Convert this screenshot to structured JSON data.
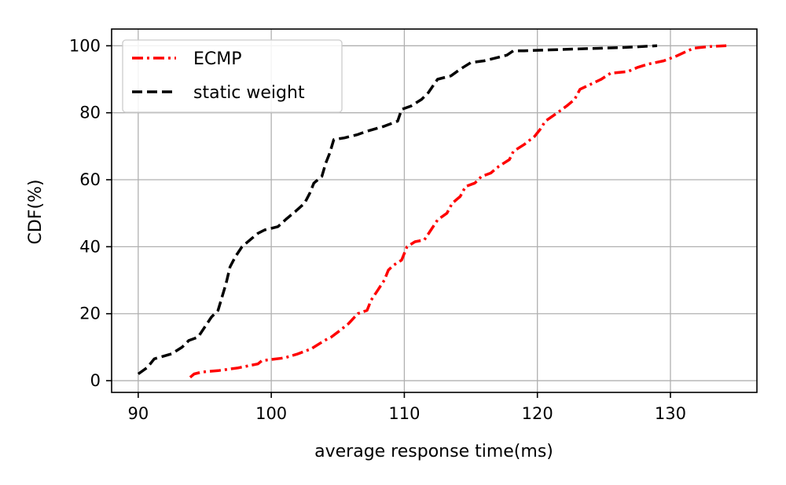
{
  "chart_data": {
    "type": "line",
    "xlabel": "average response time(ms)",
    "ylabel": "CDF(%)",
    "xlim": [
      88,
      136.5
    ],
    "ylim": [
      -3.5,
      105
    ],
    "xticks": [
      90,
      100,
      110,
      120,
      130
    ],
    "yticks": [
      0,
      20,
      40,
      60,
      80,
      100
    ],
    "grid": true,
    "legend_position": "top-left",
    "series": [
      {
        "name": "ECMP",
        "color": "#ff0000",
        "style": "dashdot",
        "points": [
          [
            93.9,
            1
          ],
          [
            94.2,
            2
          ],
          [
            94.8,
            2.6
          ],
          [
            96,
            3
          ],
          [
            97.5,
            3.8
          ],
          [
            99,
            5
          ],
          [
            99.3,
            6
          ],
          [
            101,
            6.8
          ],
          [
            102,
            8
          ],
          [
            103,
            9.5
          ],
          [
            104,
            12
          ],
          [
            104.5,
            13
          ],
          [
            105,
            14.5
          ],
          [
            105.8,
            17
          ],
          [
            106.5,
            20
          ],
          [
            107.2,
            21
          ],
          [
            107.5,
            24
          ],
          [
            108,
            27
          ],
          [
            108.5,
            30
          ],
          [
            108.8,
            33
          ],
          [
            109.2,
            34.5
          ],
          [
            109.8,
            36
          ],
          [
            110.2,
            40
          ],
          [
            110.8,
            41.5
          ],
          [
            111.5,
            42
          ],
          [
            112,
            45
          ],
          [
            112.5,
            48
          ],
          [
            113.2,
            50
          ],
          [
            113.6,
            53
          ],
          [
            114.2,
            55
          ],
          [
            114.6,
            58
          ],
          [
            115.3,
            59
          ],
          [
            115.8,
            61
          ],
          [
            116.5,
            62
          ],
          [
            117.1,
            64
          ],
          [
            117.9,
            66
          ],
          [
            118.2,
            68.5
          ],
          [
            119,
            70.5
          ],
          [
            119.8,
            73
          ],
          [
            120.2,
            75
          ],
          [
            120.6,
            77.5
          ],
          [
            121.5,
            80
          ],
          [
            122.2,
            82
          ],
          [
            122.8,
            84
          ],
          [
            123.2,
            87
          ],
          [
            124,
            88.5
          ],
          [
            124.8,
            90
          ],
          [
            125.5,
            91.8
          ],
          [
            126.8,
            92.3
          ],
          [
            127.5,
            93.5
          ],
          [
            128.3,
            94.5
          ],
          [
            129.5,
            95.5
          ],
          [
            130.5,
            97
          ],
          [
            131.3,
            98.5
          ],
          [
            131.8,
            99.3
          ],
          [
            133,
            99.8
          ],
          [
            134.2,
            100
          ]
        ]
      },
      {
        "name": "static weight",
        "color": "#000000",
        "style": "dashed",
        "points": [
          [
            90,
            2
          ],
          [
            90.7,
            4
          ],
          [
            91.2,
            6.5
          ],
          [
            92.5,
            8
          ],
          [
            93.3,
            10
          ],
          [
            93.8,
            12
          ],
          [
            94.5,
            13
          ],
          [
            95,
            16
          ],
          [
            95.5,
            19
          ],
          [
            96,
            21
          ],
          [
            96.3,
            25
          ],
          [
            96.6,
            29
          ],
          [
            96.9,
            34
          ],
          [
            97.3,
            37
          ],
          [
            97.8,
            40
          ],
          [
            98.4,
            42
          ],
          [
            99,
            44
          ],
          [
            99.5,
            45
          ],
          [
            100.5,
            46
          ],
          [
            101.2,
            48.5
          ],
          [
            101.8,
            50.5
          ],
          [
            102.5,
            53
          ],
          [
            102.9,
            56
          ],
          [
            103.2,
            59
          ],
          [
            103.8,
            61
          ],
          [
            104.1,
            65
          ],
          [
            104.4,
            68
          ],
          [
            104.7,
            72
          ],
          [
            105.5,
            72.5
          ],
          [
            106.5,
            73.5
          ],
          [
            107.2,
            74.5
          ],
          [
            108.5,
            76
          ],
          [
            109.5,
            77.5
          ],
          [
            109.8,
            81
          ],
          [
            110.5,
            82
          ],
          [
            111.3,
            84
          ],
          [
            111.8,
            86
          ],
          [
            112.5,
            90
          ],
          [
            113.5,
            91
          ],
          [
            114.2,
            93
          ],
          [
            115,
            95
          ],
          [
            116,
            95.5
          ],
          [
            117,
            96.5
          ],
          [
            117.7,
            97.2
          ],
          [
            118.2,
            98.5
          ],
          [
            119,
            98.5
          ],
          [
            121,
            98.8
          ],
          [
            124,
            99.2
          ],
          [
            126.5,
            99.5
          ],
          [
            129,
            100
          ]
        ]
      }
    ]
  }
}
